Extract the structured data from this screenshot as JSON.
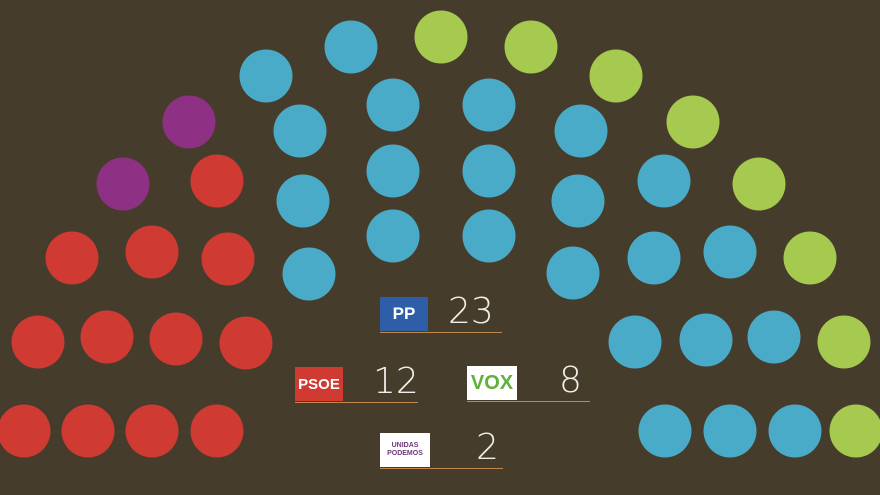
{
  "chart_data": {
    "type": "parliament",
    "total_seats": 45,
    "parties": [
      {
        "name": "UNIDAS PODEMOS",
        "seats": 2,
        "color": "#8e3185",
        "logo_bg": "#ffffff"
      },
      {
        "name": "PSOE",
        "seats": 12,
        "color": "#cf3a33",
        "logo_bg": "#cf3a33"
      },
      {
        "name": "PP",
        "seats": 23,
        "color": "#4aabc8",
        "logo_bg": "#2f5ea8"
      },
      {
        "name": "VOX",
        "seats": 8,
        "color": "#a6c94f",
        "logo_bg": "#ffffff"
      }
    ],
    "legend": {
      "pp": {
        "logo_text": "PP",
        "value": "23"
      },
      "psoe": {
        "logo_text": "PSOE",
        "value": "12"
      },
      "vox": {
        "logo_text": "VOX",
        "value": "8"
      },
      "podemos": {
        "logo_text": "UNIDAS PODEMOS",
        "value": "2"
      }
    }
  }
}
